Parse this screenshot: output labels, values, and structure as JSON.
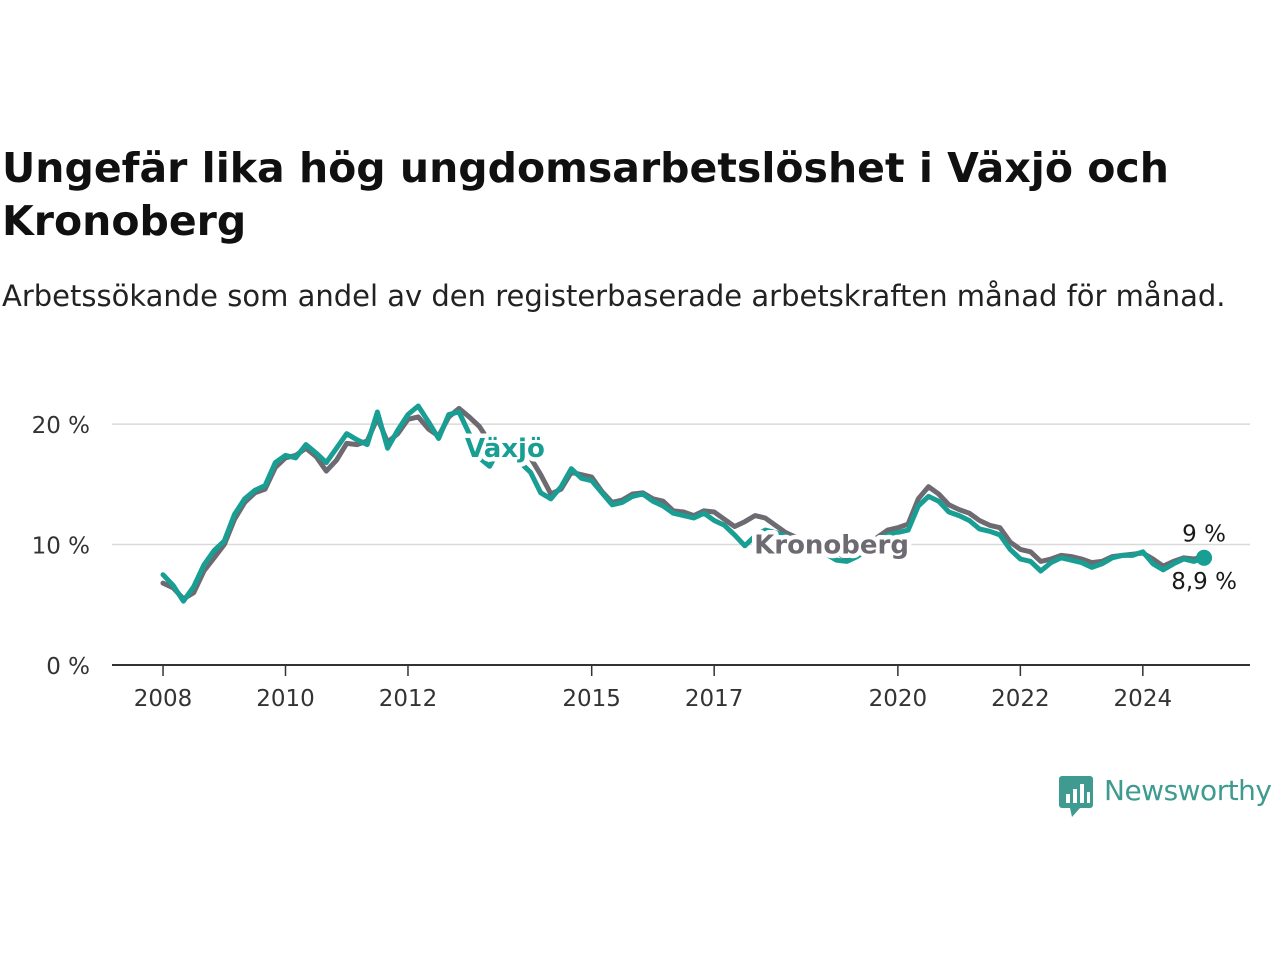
{
  "title": "Ungefär lika hög ungdomsarbetslöshet i Växjö och Kronoberg",
  "subtitle": "Arbetssökande som andel av den registerbaserade arbetskraften månad för månad.",
  "brand": {
    "name": "Newsworthy",
    "color": "#3f9a8f",
    "icon": "bar-chart-speech-bubble-icon"
  },
  "chart_data": {
    "type": "line",
    "x_type": "date",
    "xlim": [
      "2007-03",
      "2025-10"
    ],
    "ylim": [
      0,
      22
    ],
    "grid": true,
    "legend": "inline labels on the lines",
    "x_ticks": [
      {
        "value": "2008-01",
        "label": "2008"
      },
      {
        "value": "2010-01",
        "label": "2010"
      },
      {
        "value": "2012-01",
        "label": "2012"
      },
      {
        "value": "2015-01",
        "label": "2015"
      },
      {
        "value": "2017-01",
        "label": "2017"
      },
      {
        "value": "2020-01",
        "label": "2020"
      },
      {
        "value": "2022-01",
        "label": "2022"
      },
      {
        "value": "2024-01",
        "label": "2024"
      }
    ],
    "y_ticks": [
      {
        "value": 0,
        "label": "0 %"
      },
      {
        "value": 10,
        "label": "10 %"
      },
      {
        "value": 20,
        "label": "20 %"
      }
    ],
    "series": [
      {
        "name": "Kronoberg",
        "color": "#6d6a72",
        "end_label": "9 %",
        "points": [
          [
            "2008-01",
            6.8
          ],
          [
            "2008-03",
            6.4
          ],
          [
            "2008-05",
            5.5
          ],
          [
            "2008-07",
            6.0
          ],
          [
            "2008-09",
            7.8
          ],
          [
            "2008-11",
            8.9
          ],
          [
            "2009-01",
            10.0
          ],
          [
            "2009-03",
            12.1
          ],
          [
            "2009-05",
            13.5
          ],
          [
            "2009-07",
            14.3
          ],
          [
            "2009-09",
            14.6
          ],
          [
            "2009-11",
            16.4
          ],
          [
            "2010-01",
            17.2
          ],
          [
            "2010-03",
            17.4
          ],
          [
            "2010-05",
            18.0
          ],
          [
            "2010-07",
            17.3
          ],
          [
            "2010-09",
            16.1
          ],
          [
            "2010-11",
            17.0
          ],
          [
            "2011-01",
            18.4
          ],
          [
            "2011-03",
            18.3
          ],
          [
            "2011-05",
            18.6
          ],
          [
            "2011-07",
            20.5
          ],
          [
            "2011-09",
            18.5
          ],
          [
            "2011-11",
            19.2
          ],
          [
            "2012-01",
            20.4
          ],
          [
            "2012-03",
            20.6
          ],
          [
            "2012-05",
            19.6
          ],
          [
            "2012-07",
            19.0
          ],
          [
            "2012-09",
            20.6
          ],
          [
            "2012-11",
            21.3
          ],
          [
            "2013-01",
            20.6
          ],
          [
            "2013-03",
            19.8
          ],
          [
            "2013-05",
            18.5
          ],
          [
            "2013-07",
            17.4
          ],
          [
            "2013-09",
            18.0
          ],
          [
            "2013-11",
            18.5
          ],
          [
            "2014-01",
            17.2
          ],
          [
            "2014-03",
            15.8
          ],
          [
            "2014-05",
            14.2
          ],
          [
            "2014-07",
            14.6
          ],
          [
            "2014-09",
            16.0
          ],
          [
            "2014-11",
            15.8
          ],
          [
            "2015-01",
            15.6
          ],
          [
            "2015-03",
            14.4
          ],
          [
            "2015-05",
            13.5
          ],
          [
            "2015-07",
            13.7
          ],
          [
            "2015-09",
            14.2
          ],
          [
            "2015-11",
            14.3
          ],
          [
            "2016-01",
            13.8
          ],
          [
            "2016-03",
            13.6
          ],
          [
            "2016-05",
            12.8
          ],
          [
            "2016-07",
            12.7
          ],
          [
            "2016-09",
            12.4
          ],
          [
            "2016-11",
            12.8
          ],
          [
            "2017-01",
            12.7
          ],
          [
            "2017-03",
            12.1
          ],
          [
            "2017-05",
            11.5
          ],
          [
            "2017-07",
            11.9
          ],
          [
            "2017-09",
            12.4
          ],
          [
            "2017-11",
            12.2
          ],
          [
            "2018-01",
            11.6
          ],
          [
            "2018-03",
            11.0
          ],
          [
            "2018-05",
            10.6
          ],
          [
            "2018-07",
            10.2
          ],
          [
            "2018-09",
            10.0
          ],
          [
            "2018-11",
            9.6
          ],
          [
            "2019-01",
            9.3
          ],
          [
            "2019-03",
            8.9
          ],
          [
            "2019-05",
            9.3
          ],
          [
            "2019-07",
            9.9
          ],
          [
            "2019-09",
            10.6
          ],
          [
            "2019-11",
            11.2
          ],
          [
            "2020-01",
            11.4
          ],
          [
            "2020-03",
            11.7
          ],
          [
            "2020-05",
            13.8
          ],
          [
            "2020-07",
            14.8
          ],
          [
            "2020-09",
            14.2
          ],
          [
            "2020-11",
            13.3
          ],
          [
            "2021-01",
            12.9
          ],
          [
            "2021-03",
            12.6
          ],
          [
            "2021-05",
            12.0
          ],
          [
            "2021-07",
            11.6
          ],
          [
            "2021-09",
            11.4
          ],
          [
            "2021-11",
            10.2
          ],
          [
            "2022-01",
            9.6
          ],
          [
            "2022-03",
            9.4
          ],
          [
            "2022-05",
            8.6
          ],
          [
            "2022-07",
            8.8
          ],
          [
            "2022-09",
            9.1
          ],
          [
            "2022-11",
            9.0
          ],
          [
            "2023-01",
            8.8
          ],
          [
            "2023-03",
            8.5
          ],
          [
            "2023-05",
            8.6
          ],
          [
            "2023-07",
            9.0
          ],
          [
            "2023-09",
            9.1
          ],
          [
            "2023-11",
            9.2
          ],
          [
            "2024-01",
            9.3
          ],
          [
            "2024-03",
            8.8
          ],
          [
            "2024-05",
            8.2
          ],
          [
            "2024-07",
            8.6
          ],
          [
            "2024-09",
            8.9
          ],
          [
            "2024-11",
            8.8
          ],
          [
            "2025-01",
            9.0
          ]
        ]
      },
      {
        "name": "Växjö",
        "color": "#189e93",
        "end_label": "8,9 %",
        "points": [
          [
            "2008-01",
            7.5
          ],
          [
            "2008-03",
            6.6
          ],
          [
            "2008-05",
            5.3
          ],
          [
            "2008-07",
            6.5
          ],
          [
            "2008-09",
            8.3
          ],
          [
            "2008-11",
            9.5
          ],
          [
            "2009-01",
            10.3
          ],
          [
            "2009-03",
            12.5
          ],
          [
            "2009-05",
            13.8
          ],
          [
            "2009-07",
            14.5
          ],
          [
            "2009-09",
            14.9
          ],
          [
            "2009-11",
            16.8
          ],
          [
            "2010-01",
            17.4
          ],
          [
            "2010-03",
            17.2
          ],
          [
            "2010-05",
            18.3
          ],
          [
            "2010-07",
            17.6
          ],
          [
            "2010-09",
            16.8
          ],
          [
            "2010-11",
            18.0
          ],
          [
            "2011-01",
            19.2
          ],
          [
            "2011-03",
            18.7
          ],
          [
            "2011-05",
            18.3
          ],
          [
            "2011-07",
            21.0
          ],
          [
            "2011-09",
            18.0
          ],
          [
            "2011-11",
            19.5
          ],
          [
            "2012-01",
            20.8
          ],
          [
            "2012-03",
            21.5
          ],
          [
            "2012-05",
            20.2
          ],
          [
            "2012-07",
            18.8
          ],
          [
            "2012-09",
            20.8
          ],
          [
            "2012-11",
            21.0
          ],
          [
            "2013-01",
            19.2
          ],
          [
            "2013-03",
            17.2
          ],
          [
            "2013-05",
            16.5
          ],
          [
            "2013-07",
            18.0
          ],
          [
            "2013-09",
            17.6
          ],
          [
            "2013-11",
            16.8
          ],
          [
            "2014-01",
            16.0
          ],
          [
            "2014-03",
            14.3
          ],
          [
            "2014-05",
            13.8
          ],
          [
            "2014-07",
            14.8
          ],
          [
            "2014-09",
            16.3
          ],
          [
            "2014-11",
            15.5
          ],
          [
            "2015-01",
            15.3
          ],
          [
            "2015-03",
            14.3
          ],
          [
            "2015-05",
            13.3
          ],
          [
            "2015-07",
            13.5
          ],
          [
            "2015-09",
            14.0
          ],
          [
            "2015-11",
            14.2
          ],
          [
            "2016-01",
            13.6
          ],
          [
            "2016-03",
            13.2
          ],
          [
            "2016-05",
            12.6
          ],
          [
            "2016-07",
            12.4
          ],
          [
            "2016-09",
            12.2
          ],
          [
            "2016-11",
            12.6
          ],
          [
            "2017-01",
            12.0
          ],
          [
            "2017-03",
            11.6
          ],
          [
            "2017-05",
            10.8
          ],
          [
            "2017-07",
            9.9
          ],
          [
            "2017-09",
            10.7
          ],
          [
            "2017-11",
            11.2
          ],
          [
            "2018-01",
            11.0
          ],
          [
            "2018-03",
            10.7
          ],
          [
            "2018-05",
            10.3
          ],
          [
            "2018-07",
            9.8
          ],
          [
            "2018-09",
            9.5
          ],
          [
            "2018-11",
            9.2
          ],
          [
            "2019-01",
            8.7
          ],
          [
            "2019-03",
            8.6
          ],
          [
            "2019-05",
            9.0
          ],
          [
            "2019-07",
            9.6
          ],
          [
            "2019-09",
            10.4
          ],
          [
            "2019-11",
            10.8
          ],
          [
            "2020-01",
            11.0
          ],
          [
            "2020-03",
            11.2
          ],
          [
            "2020-05",
            13.2
          ],
          [
            "2020-07",
            14.0
          ],
          [
            "2020-09",
            13.6
          ],
          [
            "2020-11",
            12.7
          ],
          [
            "2021-01",
            12.4
          ],
          [
            "2021-03",
            12.0
          ],
          [
            "2021-05",
            11.3
          ],
          [
            "2021-07",
            11.1
          ],
          [
            "2021-09",
            10.8
          ],
          [
            "2021-11",
            9.6
          ],
          [
            "2022-01",
            8.8
          ],
          [
            "2022-03",
            8.6
          ],
          [
            "2022-05",
            7.8
          ],
          [
            "2022-07",
            8.5
          ],
          [
            "2022-09",
            8.9
          ],
          [
            "2022-11",
            8.7
          ],
          [
            "2023-01",
            8.5
          ],
          [
            "2023-03",
            8.1
          ],
          [
            "2023-05",
            8.4
          ],
          [
            "2023-07",
            8.9
          ],
          [
            "2023-09",
            9.1
          ],
          [
            "2023-11",
            9.1
          ],
          [
            "2024-01",
            9.4
          ],
          [
            "2024-03",
            8.4
          ],
          [
            "2024-05",
            7.9
          ],
          [
            "2024-07",
            8.4
          ],
          [
            "2024-09",
            8.8
          ],
          [
            "2024-11",
            8.6
          ],
          [
            "2025-01",
            8.9
          ]
        ]
      }
    ]
  }
}
